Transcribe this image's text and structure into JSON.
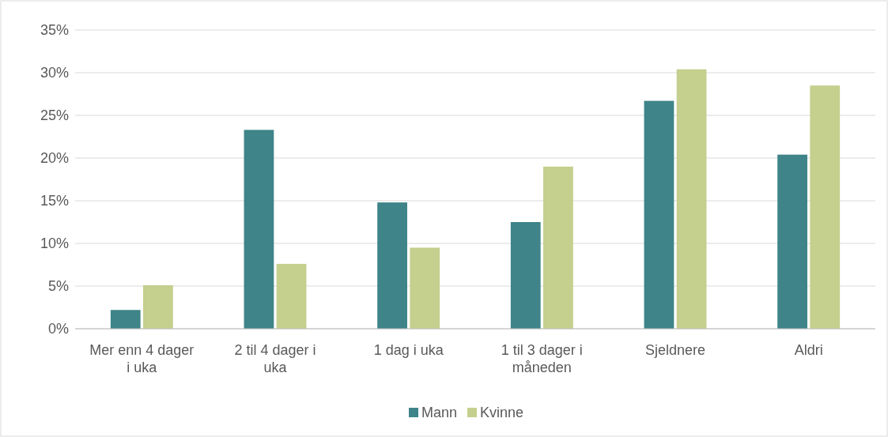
{
  "chart_data": {
    "type": "bar",
    "categories": [
      "Mer enn 4 dager i uka",
      "2 til 4 dager i uka",
      "1 dag i uka",
      "1 til 3 dager i måneden",
      "Sjeldnere",
      "Aldri"
    ],
    "series": [
      {
        "name": "Mann",
        "color": "#3e8489",
        "values": [
          2.2,
          23.3,
          14.8,
          12.5,
          26.7,
          20.4
        ]
      },
      {
        "name": "Kvinne",
        "color": "#c5cf8e",
        "values": [
          5.1,
          7.6,
          9.5,
          19.0,
          30.4,
          28.5
        ]
      }
    ],
    "ylim": [
      0,
      35
    ],
    "yticks": [
      {
        "value": 0,
        "label": "0%"
      },
      {
        "value": 5,
        "label": "5%"
      },
      {
        "value": 10,
        "label": "10%"
      },
      {
        "value": 15,
        "label": "15%"
      },
      {
        "value": 20,
        "label": "20%"
      },
      {
        "value": 25,
        "label": "25%"
      },
      {
        "value": 30,
        "label": "30%"
      },
      {
        "value": 35,
        "label": "35%"
      }
    ],
    "grid": "y",
    "legend": "bottom"
  }
}
